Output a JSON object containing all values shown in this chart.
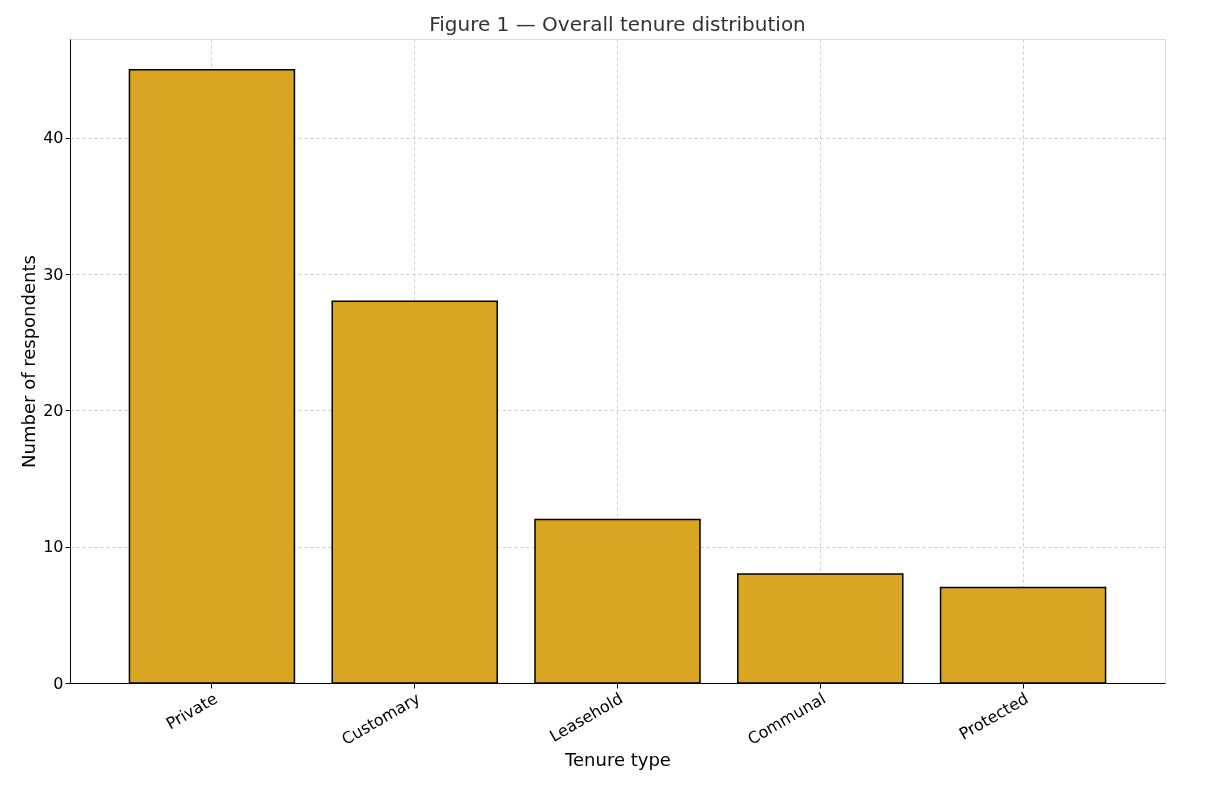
{
  "chart_data": {
    "type": "bar",
    "title": "Figure 1 — Overall tenure distribution",
    "xlabel": "Tenure type",
    "ylabel": "Number of respondents",
    "categories": [
      "Private",
      "Customary",
      "Leasehold",
      "Communal",
      "Protected"
    ],
    "values": [
      45,
      28,
      12,
      8,
      7
    ],
    "color": "#daa520",
    "ylim": [
      0,
      47.25
    ],
    "yticks": [
      0,
      10,
      20,
      30,
      40
    ],
    "grid": true
  }
}
